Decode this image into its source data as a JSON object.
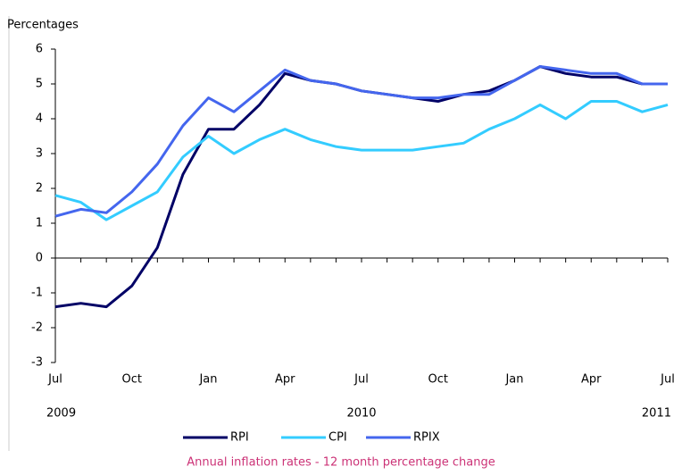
{
  "chart_data": {
    "type": "line",
    "ylabel": "Percentages",
    "caption": "Annual inflation rates - 12 month percentage change",
    "categories": [
      "Jul",
      null,
      null,
      "Oct",
      null,
      null,
      "Jan",
      null,
      null,
      "Apr",
      null,
      null,
      "Jul",
      null,
      null,
      "Oct",
      null,
      null,
      "Jan",
      null,
      null,
      "Apr",
      null,
      null,
      "Jul"
    ],
    "years": [
      "2009",
      "2010",
      "2011"
    ],
    "ylim": [
      -3,
      6
    ],
    "yticks": [
      -3,
      -2,
      -1,
      0,
      1,
      2,
      3,
      4,
      5,
      6
    ],
    "grid": false,
    "series": [
      {
        "name": "RPI",
        "color": "#000066",
        "values": [
          -1.4,
          -1.3,
          -1.4,
          -0.8,
          0.3,
          2.4,
          3.7,
          3.7,
          4.4,
          5.3,
          5.1,
          5.0,
          4.8,
          4.7,
          4.6,
          4.5,
          4.7,
          4.8,
          5.1,
          5.5,
          5.3,
          5.2,
          5.2,
          5.0,
          5.0
        ]
      },
      {
        "name": "CPI",
        "color": "#33ccff",
        "values": [
          1.8,
          1.6,
          1.1,
          1.5,
          1.9,
          2.9,
          3.5,
          3.0,
          3.4,
          3.7,
          3.4,
          3.2,
          3.1,
          3.1,
          3.1,
          3.2,
          3.3,
          3.7,
          4.0,
          4.4,
          4.0,
          4.5,
          4.5,
          4.2,
          4.4
        ]
      },
      {
        "name": "RPIX",
        "color": "#4466ee",
        "values": [
          1.2,
          1.4,
          1.3,
          1.9,
          2.7,
          3.8,
          4.6,
          4.2,
          4.8,
          5.4,
          5.1,
          5.0,
          4.8,
          4.7,
          4.6,
          4.6,
          4.7,
          4.7,
          5.1,
          5.5,
          5.4,
          5.3,
          5.3,
          5.0,
          5.0
        ]
      }
    ]
  }
}
